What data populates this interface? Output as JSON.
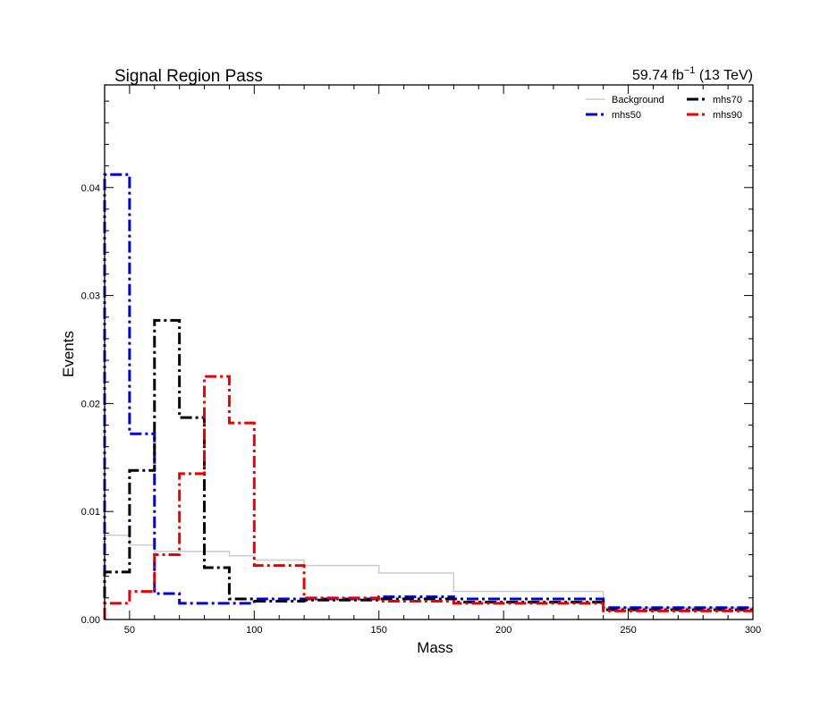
{
  "chart_data": {
    "type": "line",
    "title": "Signal Region Pass",
    "lumi": {
      "value": "59.74 fb",
      "exponent": "−1",
      "energy": "(13 TeV)"
    },
    "xlabel": "Mass",
    "ylabel": "Events",
    "xlim": [
      40,
      300
    ],
    "ylim": [
      0,
      0.0495
    ],
    "x_ticks": [
      50,
      100,
      150,
      200,
      250,
      300
    ],
    "y_ticks": [
      0.0,
      0.01,
      0.02,
      0.03,
      0.04
    ],
    "y_tick_labels": [
      "0.00",
      "0.01",
      "0.02",
      "0.03",
      "0.04"
    ],
    "bin_edges": [
      40,
      50,
      60,
      70,
      80,
      90,
      100,
      120,
      150,
      180,
      240,
      300
    ],
    "legend_position": "top-right",
    "series": [
      {
        "name": "Background",
        "color": "#cccccc",
        "style": "solid",
        "values": [
          0.0078,
          0.0069,
          0.0063,
          0.0063,
          0.0063,
          0.0059,
          0.0055,
          0.005,
          0.0043,
          0.0026,
          0.0011
        ]
      },
      {
        "name": "mhs50",
        "color": "#0000dd",
        "style": "dashdot",
        "values": [
          0.0412,
          0.0172,
          0.0024,
          0.0015,
          0.0015,
          0.0015,
          0.0019,
          0.0019,
          0.0021,
          0.0019,
          0.0011
        ]
      },
      {
        "name": "mhs70",
        "color": "#000000",
        "style": "dashdot",
        "values": [
          0.0044,
          0.0138,
          0.0277,
          0.0187,
          0.0048,
          0.0019,
          0.0017,
          0.0018,
          0.0019,
          0.0016,
          0.0009
        ]
      },
      {
        "name": "mhs90",
        "color": "#ee0000",
        "style": "dashdot",
        "values": [
          0.0015,
          0.0026,
          0.006,
          0.0135,
          0.0225,
          0.0182,
          0.005,
          0.002,
          0.0017,
          0.0015,
          0.0008
        ]
      }
    ]
  }
}
